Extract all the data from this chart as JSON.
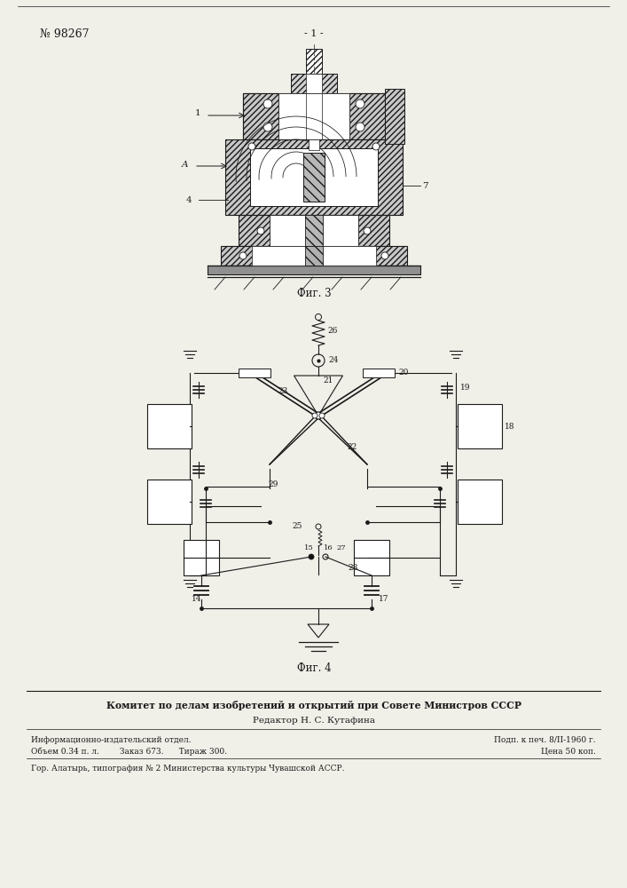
{
  "patent_number": "№ 98267",
  "page_number": "- 1 -",
  "fig3_label": "Фиг. 3",
  "fig4_label": "Фиг. 4",
  "footer_line1": "Комитет по делам изобретений и открытий при Совете Министров СССР",
  "footer_line2": "Редактор Н. С. Кутафина",
  "footer_line3a": "Информационно-издательский отдел.",
  "footer_line3b": "Подп. к печ. 8/II-1960 г.",
  "footer_line4a": "Объем 0.34 п. л.        Заказ 673.      Тираж 300.",
  "footer_line4b": "Цена 50 коп.",
  "footer_line5": "Гор. Алатырь, типография № 2 Министерства культуры Чувашской АССР.",
  "bg_color": "#f0efe8",
  "line_color": "#1a1a1a",
  "hatch_color": "#333333"
}
